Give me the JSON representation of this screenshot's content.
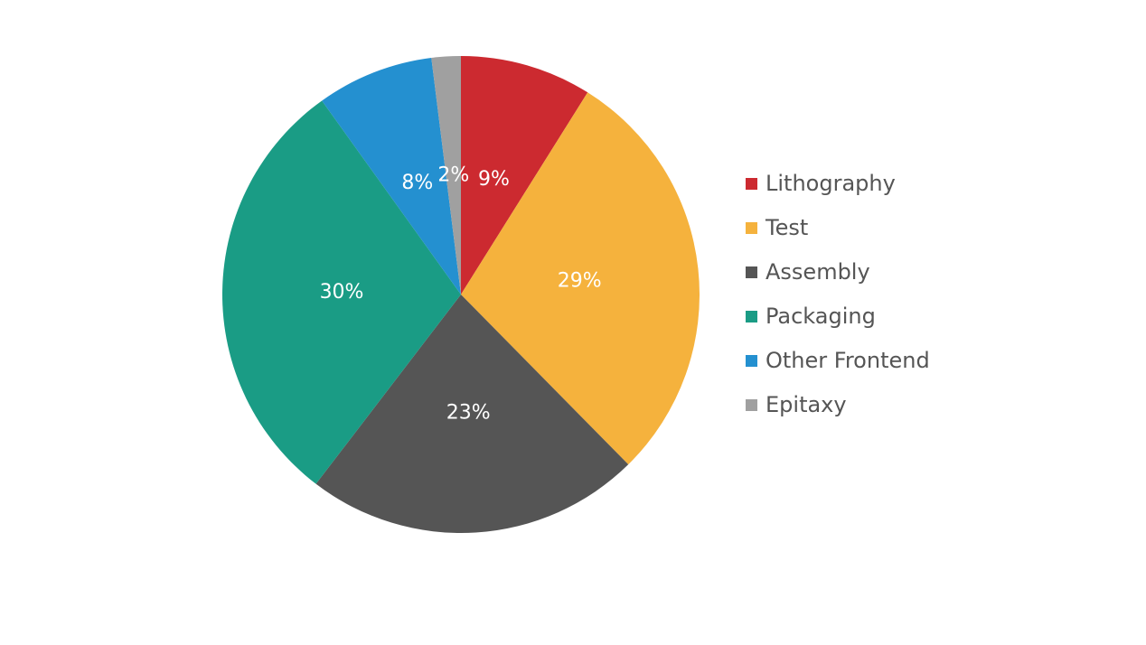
{
  "chart_data": {
    "type": "pie",
    "categories": [
      "Lithography",
      "Test",
      "Assembly",
      "Packaging",
      "Other Frontend",
      "Epitaxy"
    ],
    "values": [
      9,
      29,
      23,
      30,
      8,
      2
    ],
    "value_labels": [
      "9%",
      "29%",
      "23%",
      "30%",
      "8%",
      "2%"
    ],
    "colors": [
      "#cc2a30",
      "#f5b23d",
      "#555555",
      "#1a9c85",
      "#2490d0",
      "#a0a0a0"
    ],
    "legend": "right"
  }
}
